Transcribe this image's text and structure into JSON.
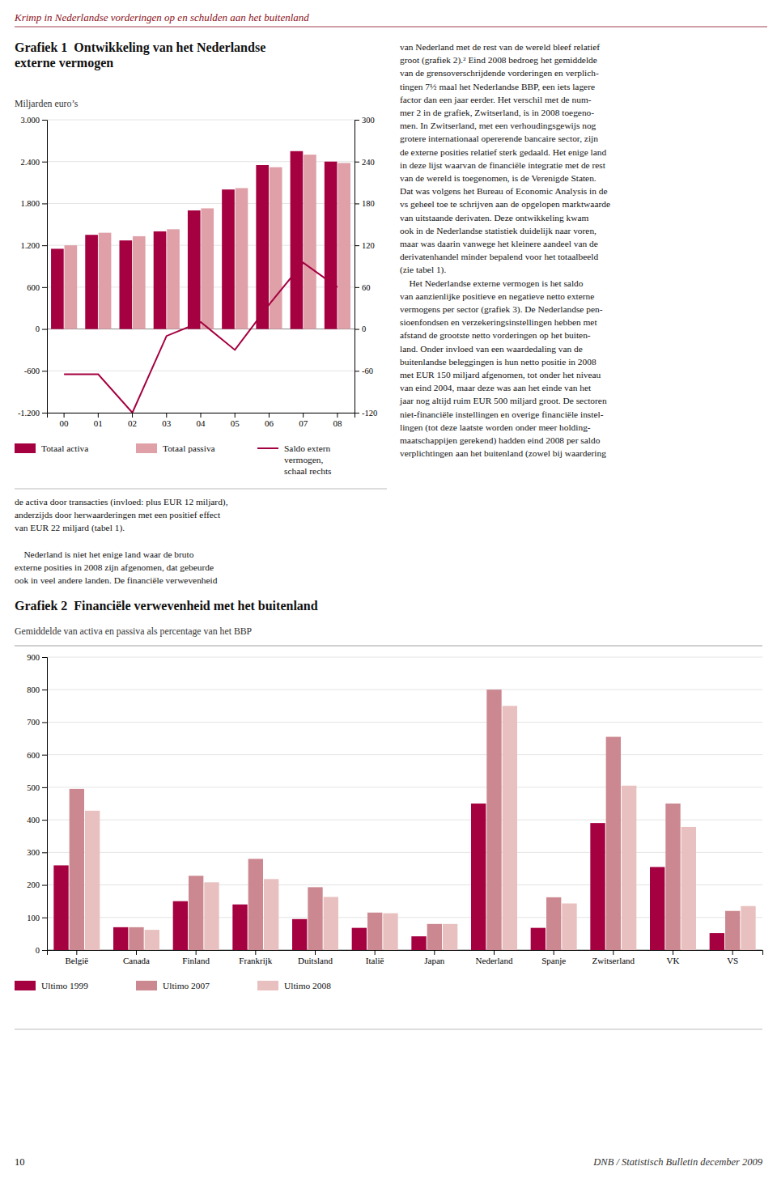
{
  "page_title": "Krimp in Nederlandse vorderingen op en schulden aan het buitenland",
  "chart_data": [
    {
      "type": "bar",
      "title": "Grafiek 1  Ontwikkeling van het Nederlandse\nexterne vermogen",
      "subtitle": "Miljarden euro’s",
      "categories": [
        "00",
        "01",
        "02",
        "03",
        "04",
        "05",
        "06",
        "07",
        "08"
      ],
      "series": [
        {
          "name": "Totaal activa",
          "type": "bar",
          "color": "#A50040",
          "values": [
            1150,
            1350,
            1270,
            1400,
            1700,
            2000,
            2350,
            2550,
            2400
          ]
        },
        {
          "name": "Totaal passiva",
          "type": "bar",
          "color": "#DFA0A8",
          "values": [
            1200,
            1380,
            1330,
            1430,
            1730,
            2020,
            2320,
            2500,
            2380
          ]
        },
        {
          "name": "Saldo extern\nvermogen,\nschaal rechts",
          "type": "line",
          "axis": "y2",
          "color": "#A50040",
          "values": [
            -65,
            -65,
            -120,
            -10,
            10,
            -30,
            35,
            95,
            60
          ]
        }
      ],
      "ylim": [
        -1200,
        3000
      ],
      "yticks": [
        {
          "value": -1200,
          "label": "-1.200"
        },
        -600,
        0,
        600,
        {
          "value": 1200,
          "label": "1.200"
        },
        {
          "value": 1800,
          "label": "1.800"
        },
        {
          "value": 2400,
          "label": "2.400"
        },
        {
          "value": 3000,
          "label": "3.000"
        }
      ],
      "y2lim": [
        -120,
        300
      ],
      "y2ticks": [
        -120,
        -60,
        0,
        60,
        120,
        180,
        240,
        300
      ],
      "grid": true,
      "legend": "bottom"
    },
    {
      "type": "bar",
      "title": "Grafiek 2  Financiële verwevenheid met het buitenland",
      "subtitle": "Gemiddelde van activa en passiva als percentage van het BBP",
      "categories": [
        "België",
        "Canada",
        "Finland",
        "Frankrijk",
        "Duitsland",
        "Italië",
        "Japan",
        "Nederland",
        "Spanje",
        "Zwitserland",
        "VK",
        "VS"
      ],
      "series": [
        {
          "name": "Ultimo 1999",
          "color": "#A50040",
          "values": [
            260,
            70,
            150,
            140,
            95,
            68,
            42,
            450,
            68,
            390,
            255,
            52
          ]
        },
        {
          "name": "Ultimo 2007",
          "color": "#CC8890",
          "values": [
            495,
            70,
            228,
            280,
            193,
            115,
            80,
            800,
            162,
            655,
            450,
            120
          ]
        },
        {
          "name": "Ultimo 2008",
          "color": "#E8C0C0",
          "values": [
            428,
            62,
            208,
            218,
            163,
            113,
            80,
            750,
            143,
            505,
            378,
            135
          ]
        }
      ],
      "ylim": [
        0,
        900
      ],
      "yticks": [
        0,
        100,
        200,
        300,
        400,
        500,
        600,
        700,
        800,
        900
      ],
      "grid": true,
      "legend": "bottom"
    }
  ],
  "text_right_top": [
    "van Nederland met de rest van de wereld bleef relatief",
    "groot (grafiek 2).² Eind 2008 bedroeg het gemiddelde",
    "van de grensoverschrijdende vorderingen en verplich-",
    "tingen 7½ maal het Nederlandse BBP, een iets lagere",
    "factor dan een jaar eerder. Het verschil met de num-",
    "mer 2 in de grafiek, Zwitserland, is in 2008 toegeno-",
    "men. In Zwitserland, met een verhoudingsgewijs nog",
    "grotere internationaal opererende bancaire sector, zijn",
    "de externe posities relatief sterk gedaald. Het enige land",
    "in deze lijst waarvan de financiële integratie met de rest",
    "van de wereld is toegenomen, is de Verenigde Staten.",
    "Dat was volgens het Bureau of Economic Analysis in de",
    "vs geheel toe te schrijven aan de opgelopen marktwaarde",
    "van uitstaande derivaten. Deze ontwikkeling kwam",
    "ook in de Nederlandse statistiek duidelijk naar voren,",
    "maar was daarin vanwege het kleinere aandeel van de",
    "derivatenhandel minder bepalend voor het totaalbeeld",
    "(zie tabel 1).",
    "    Het Nederlandse externe vermogen is het saldo",
    "van aanzienlijke positieve en negatieve netto externe",
    "vermogens per sector (grafiek 3). De Nederlandse pen-",
    "sioenfondsen en verzekeringsinstellingen hebben met",
    "afstand de grootste netto vorderingen op het buiten-",
    "land. Onder invloed van een waardedaling van de",
    "buitenlandse beleggingen is hun netto positie in 2008",
    "met EUR 150 miljard afgenomen, tot onder het niveau",
    "van eind 2004, maar deze was aan het einde van het",
    "jaar nog altijd ruim EUR 500 miljard groot. De sectoren",
    "niet-financiële instellingen en overige financiële instel-",
    "lingen (tot deze laatste worden onder meer holding-",
    "maatschappijen gerekend) hadden eind 2008 per saldo",
    "verplichtingen aan het buitenland (zowel bij waardering"
  ],
  "text_left_bottom": [
    [
      "de activa door transacties (invloed: plus EUR 12 miljard),",
      "anderzijds door herwaarderingen met een positief effect",
      "van EUR 22 miljard (tabel 1)."
    ],
    [
      "    Nederland is niet het enige land waar de bruto",
      "externe posities in 2008 zijn afgenomen, dat gebeurde",
      "ook in veel andere landen. De financiële verwevenheid"
    ]
  ],
  "footer_left": "10",
  "footer_right": "DNB / Statistisch Bulletin december 2009"
}
